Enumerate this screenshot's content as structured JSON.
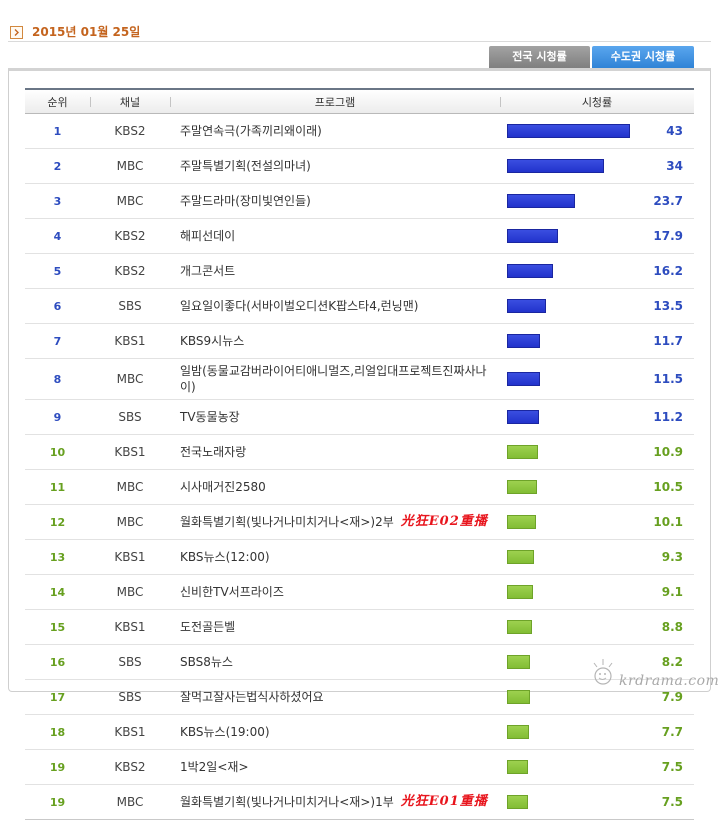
{
  "icons": {
    "date_marker": "chevron-right-icon",
    "watermark": "watermark-doodle-icon"
  },
  "date": "2015년 01월 25일",
  "tabs": [
    {
      "label": "전국 시청률",
      "active": false
    },
    {
      "label": "수도권 시청률",
      "active": true
    }
  ],
  "table": {
    "headers": {
      "rank": "순위",
      "channel": "채널",
      "program": "프로그램",
      "rating": "시청률"
    },
    "rows": [
      {
        "rank": "1",
        "channel": "KBS2",
        "program": "주말연속극(가족끼리왜이래)",
        "rating": "43",
        "color": "blue"
      },
      {
        "rank": "2",
        "channel": "MBC",
        "program": "주말특별기획(전설의마녀)",
        "rating": "34",
        "color": "blue"
      },
      {
        "rank": "3",
        "channel": "MBC",
        "program": "주말드라마(장미빛연인들)",
        "rating": "23.7",
        "color": "blue"
      },
      {
        "rank": "4",
        "channel": "KBS2",
        "program": "해피선데이",
        "rating": "17.9",
        "color": "blue"
      },
      {
        "rank": "5",
        "channel": "KBS2",
        "program": "개그콘서트",
        "rating": "16.2",
        "color": "blue"
      },
      {
        "rank": "6",
        "channel": "SBS",
        "program": "일요일이좋다(서바이벌오디션K팝스타4,런닝맨)",
        "rating": "13.5",
        "color": "blue"
      },
      {
        "rank": "7",
        "channel": "KBS1",
        "program": "KBS9시뉴스",
        "rating": "11.7",
        "color": "blue"
      },
      {
        "rank": "8",
        "channel": "MBC",
        "program": "일밤(동물교감버라이어티애니멀즈,리얼입대프로젝트진짜사나이)",
        "rating": "11.5",
        "color": "blue"
      },
      {
        "rank": "9",
        "channel": "SBS",
        "program": "TV동물농장",
        "rating": "11.2",
        "color": "blue"
      },
      {
        "rank": "10",
        "channel": "KBS1",
        "program": "전국노래자랑",
        "rating": "10.9",
        "color": "green"
      },
      {
        "rank": "11",
        "channel": "MBC",
        "program": "시사매거진2580",
        "rating": "10.5",
        "color": "green"
      },
      {
        "rank": "12",
        "channel": "MBC",
        "program": "월화특별기획(빛나거나미치거나<재>)2부",
        "rating": "10.1",
        "color": "green",
        "note": "光狂E02重播"
      },
      {
        "rank": "13",
        "channel": "KBS1",
        "program": "KBS뉴스(12:00)",
        "rating": "9.3",
        "color": "green"
      },
      {
        "rank": "14",
        "channel": "MBC",
        "program": "신비한TV서프라이즈",
        "rating": "9.1",
        "color": "green"
      },
      {
        "rank": "15",
        "channel": "KBS1",
        "program": "도전골든벨",
        "rating": "8.8",
        "color": "green"
      },
      {
        "rank": "16",
        "channel": "SBS",
        "program": "SBS8뉴스",
        "rating": "8.2",
        "color": "green"
      },
      {
        "rank": "17",
        "channel": "SBS",
        "program": "잘먹고잘사는법식사하셨어요",
        "rating": "7.9",
        "color": "green"
      },
      {
        "rank": "18",
        "channel": "KBS1",
        "program": "KBS뉴스(19:00)",
        "rating": "7.7",
        "color": "green"
      },
      {
        "rank": "19",
        "channel": "KBS2",
        "program": "1박2일<재>",
        "rating": "7.5",
        "color": "green"
      },
      {
        "rank": "19",
        "channel": "MBC",
        "program": "월화특별기획(빛나거나미치거나<재>)1부",
        "rating": "7.5",
        "color": "green",
        "note": "光狂E01重播"
      }
    ]
  },
  "colors": {
    "blue": {
      "text": "#2d4cbf",
      "bar": "#2233cc",
      "bar_light": "#3a4ee0",
      "bar_border": "#1a26a0"
    },
    "green": {
      "text": "#67a020",
      "bar": "#82bd34",
      "bar_light": "#9dd14f",
      "bar_border": "#6ea329"
    },
    "date": "#c4641e",
    "tab_active": "#3d8fe0",
    "tab_inactive": "#8c8c8c",
    "annotation": "#e8141c"
  },
  "watermark": "krdrama.com"
}
